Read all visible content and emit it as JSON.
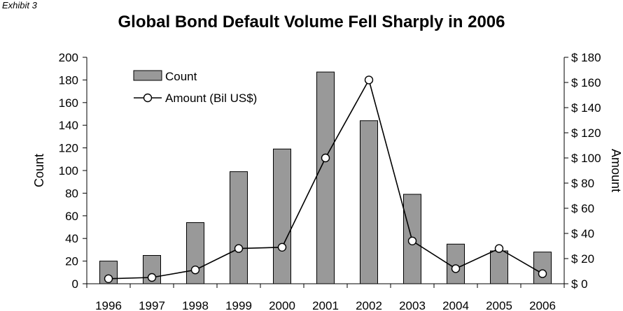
{
  "exhibit_label": "Exhibit 3",
  "chart_data": {
    "type": "bar+line",
    "title": "Global Bond Default Volume Fell Sharply in 2006",
    "categories": [
      "1996",
      "1997",
      "1998",
      "1999",
      "2000",
      "2001",
      "2002",
      "2003",
      "2004",
      "2005",
      "2006"
    ],
    "series": [
      {
        "name": "Count",
        "type": "bar",
        "axis": "left",
        "color": "#999999",
        "values": [
          20,
          25,
          54,
          99,
          119,
          187,
          144,
          79,
          35,
          29,
          28
        ]
      },
      {
        "name": "Amount (Bil US$)",
        "type": "line",
        "axis": "right",
        "color": "#000000",
        "values": [
          4,
          5,
          11,
          28,
          29,
          100,
          162,
          34,
          12,
          28,
          8
        ]
      }
    ],
    "ylabel": "Count",
    "y2label": "Amount",
    "ylim": [
      0,
      200
    ],
    "y2lim": [
      0,
      180
    ],
    "yticks": [
      "0",
      "20",
      "40",
      "60",
      "80",
      "100",
      "120",
      "140",
      "160",
      "180",
      "200"
    ],
    "y2ticks": [
      "$ 0",
      "$ 20",
      "$ 40",
      "$ 60",
      "$ 80",
      "$ 100",
      "$ 120",
      "$ 140",
      "$ 160",
      "$ 180"
    ],
    "grid": false,
    "legend": "top-left"
  }
}
